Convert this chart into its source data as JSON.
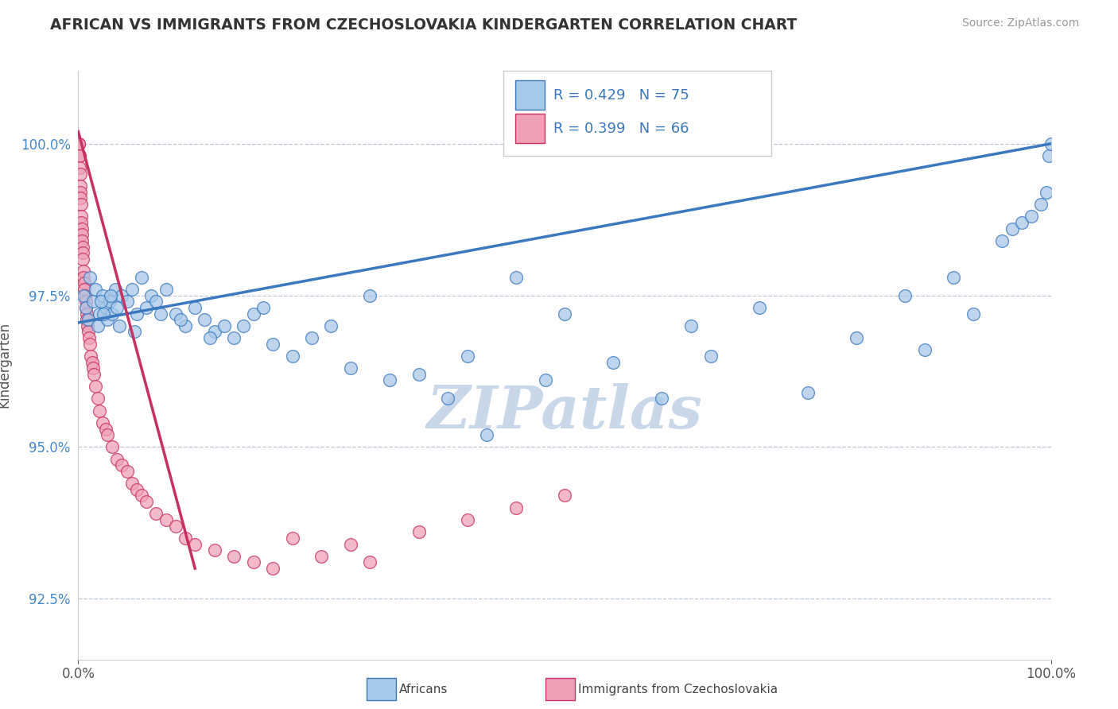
{
  "title": "AFRICAN VS IMMIGRANTS FROM CZECHOSLOVAKIA KINDERGARTEN CORRELATION CHART",
  "source_text": "Source: ZipAtlas.com",
  "ylabel": "Kindergarten",
  "xlim": [
    0.0,
    100.0
  ],
  "ylim": [
    91.5,
    101.2
  ],
  "yticks": [
    92.5,
    95.0,
    97.5,
    100.0
  ],
  "xticks": [
    0.0,
    100.0
  ],
  "xticklabels": [
    "0.0%",
    "100.0%"
  ],
  "yticklabels": [
    "92.5%",
    "95.0%",
    "97.5%",
    "100.0%"
  ],
  "legend_r1": "R = 0.429",
  "legend_n1": "N = 75",
  "legend_r2": "R = 0.399",
  "legend_n2": "N = 66",
  "color_blue": "#a8c8e8",
  "color_pink": "#f0a0b8",
  "color_blue_line": "#3a78c0",
  "color_pink_line": "#c83060",
  "watermark_color": "#c8d8ea",
  "blue_x": [
    0.5,
    0.8,
    1.0,
    1.2,
    1.5,
    1.8,
    2.0,
    2.2,
    2.5,
    2.8,
    3.0,
    3.2,
    3.5,
    3.8,
    4.0,
    4.5,
    5.0,
    5.5,
    6.0,
    6.5,
    7.0,
    7.5,
    8.0,
    9.0,
    10.0,
    11.0,
    12.0,
    13.0,
    14.0,
    15.0,
    16.0,
    17.0,
    18.0,
    19.0,
    20.0,
    22.0,
    24.0,
    26.0,
    28.0,
    30.0,
    32.0,
    35.0,
    38.0,
    40.0,
    42.0,
    45.0,
    48.0,
    50.0,
    55.0,
    60.0,
    63.0,
    65.0,
    70.0,
    75.0,
    80.0,
    85.0,
    87.0,
    90.0,
    92.0,
    95.0,
    96.0,
    97.0,
    98.0,
    99.0,
    99.5,
    99.8,
    100.0,
    2.3,
    2.6,
    3.3,
    4.2,
    5.8,
    8.5,
    10.5,
    13.5
  ],
  "blue_y": [
    97.5,
    97.3,
    97.1,
    97.8,
    97.4,
    97.6,
    97.0,
    97.2,
    97.5,
    97.3,
    97.1,
    97.4,
    97.2,
    97.6,
    97.3,
    97.5,
    97.4,
    97.6,
    97.2,
    97.8,
    97.3,
    97.5,
    97.4,
    97.6,
    97.2,
    97.0,
    97.3,
    97.1,
    96.9,
    97.0,
    96.8,
    97.0,
    97.2,
    97.3,
    96.7,
    96.5,
    96.8,
    97.0,
    96.3,
    97.5,
    96.1,
    96.2,
    95.8,
    96.5,
    95.2,
    97.8,
    96.1,
    97.2,
    96.4,
    95.8,
    97.0,
    96.5,
    97.3,
    95.9,
    96.8,
    97.5,
    96.6,
    97.8,
    97.2,
    98.4,
    98.6,
    98.7,
    98.8,
    99.0,
    99.2,
    99.8,
    100.0,
    97.4,
    97.2,
    97.5,
    97.0,
    96.9,
    97.2,
    97.1,
    96.8
  ],
  "pink_x": [
    0.05,
    0.08,
    0.1,
    0.12,
    0.15,
    0.18,
    0.2,
    0.22,
    0.25,
    0.28,
    0.3,
    0.32,
    0.35,
    0.38,
    0.4,
    0.42,
    0.45,
    0.48,
    0.5,
    0.55,
    0.6,
    0.65,
    0.7,
    0.75,
    0.8,
    0.85,
    0.9,
    0.95,
    1.0,
    1.1,
    1.2,
    1.3,
    1.4,
    1.5,
    1.6,
    1.8,
    2.0,
    2.2,
    2.5,
    2.8,
    3.0,
    3.5,
    4.0,
    4.5,
    5.0,
    5.5,
    6.0,
    6.5,
    7.0,
    8.0,
    9.0,
    10.0,
    11.0,
    12.0,
    14.0,
    16.0,
    18.0,
    20.0,
    22.0,
    25.0,
    28.0,
    30.0,
    35.0,
    40.0,
    45.0,
    50.0
  ],
  "pink_y": [
    100.0,
    100.0,
    99.8,
    99.8,
    99.6,
    99.5,
    99.3,
    99.2,
    99.1,
    99.0,
    98.8,
    98.7,
    98.6,
    98.5,
    98.4,
    98.3,
    98.2,
    98.1,
    97.9,
    97.8,
    97.7,
    97.6,
    97.5,
    97.4,
    97.3,
    97.2,
    97.1,
    97.0,
    96.9,
    96.8,
    96.7,
    96.5,
    96.4,
    96.3,
    96.2,
    96.0,
    95.8,
    95.6,
    95.4,
    95.3,
    95.2,
    95.0,
    94.8,
    94.7,
    94.6,
    94.4,
    94.3,
    94.2,
    94.1,
    93.9,
    93.8,
    93.7,
    93.5,
    93.4,
    93.3,
    93.2,
    93.1,
    93.0,
    93.5,
    93.2,
    93.4,
    93.1,
    93.6,
    93.8,
    94.0,
    94.2
  ]
}
